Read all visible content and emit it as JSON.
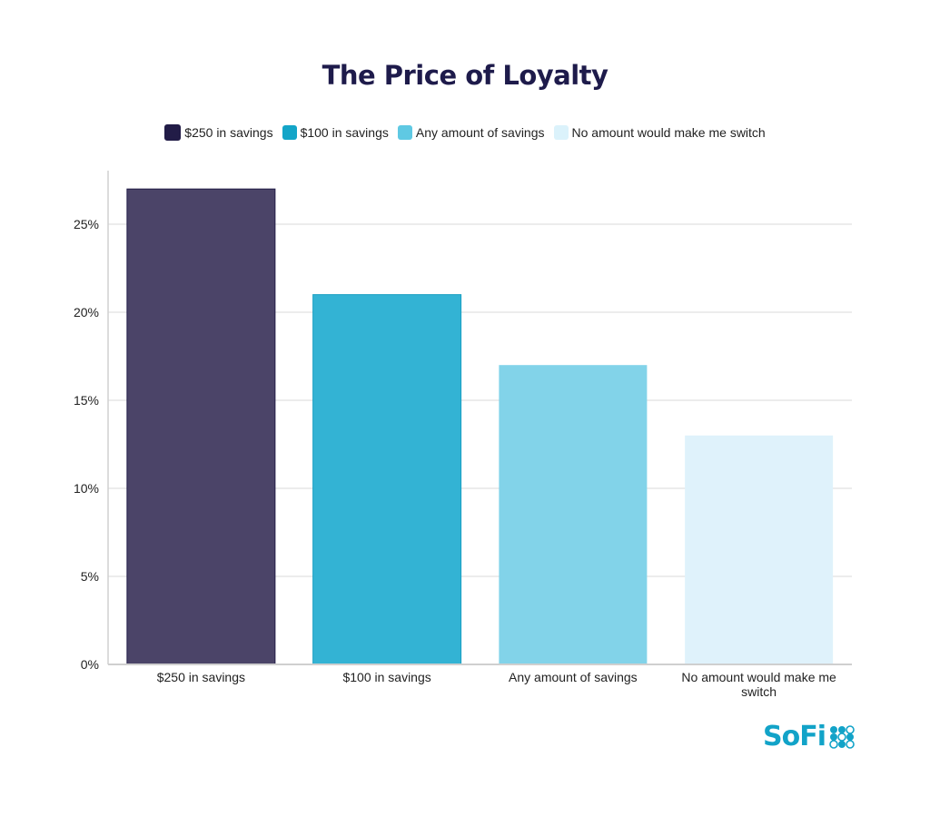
{
  "chart_data": {
    "type": "bar",
    "title": "The Price of Loyalty",
    "categories": [
      "$250 in savings",
      "$100 in savings",
      "Any amount of savings",
      "No amount would make me switch"
    ],
    "values": [
      27,
      21,
      17,
      13
    ],
    "unit": "%",
    "ylim": [
      0,
      28
    ],
    "yticks": [
      0,
      5,
      10,
      15,
      20,
      25
    ],
    "ytick_labels": [
      "0%",
      "5%",
      "10%",
      "15%",
      "20%",
      "25%"
    ],
    "xlabel": "",
    "ylabel": "",
    "grid": true,
    "legend_position": "top-center",
    "legend": [
      "$250 in savings",
      "$100 in savings",
      "Any amount of savings",
      "No amount would make me switch"
    ],
    "colors": [
      "#4b4468",
      "#33b3d4",
      "#82d3e9",
      "#dff2fb"
    ]
  },
  "branding": {
    "logo_text": "SoFi"
  }
}
